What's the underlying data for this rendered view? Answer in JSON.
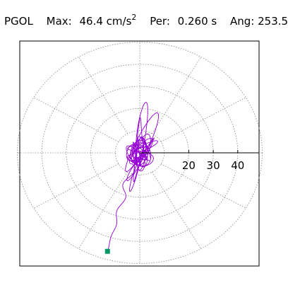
{
  "header": {
    "station": "PGOL",
    "max_label": "Max:",
    "max_value": "46.4",
    "max_unit": "cm/s",
    "max_unit_exp": "2",
    "per_label": "Per:",
    "per_value": "0.260 s",
    "ang_label": "Ang:",
    "ang_value": "253.5"
  },
  "chart_data": {
    "type": "scatter",
    "title": "",
    "radial_ticks": [
      "20",
      "30",
      "40"
    ],
    "rings": [
      10,
      20,
      30,
      40,
      50
    ],
    "spokes_deg": [
      0,
      30,
      60,
      90,
      120,
      150,
      180,
      210,
      240,
      270,
      300,
      330
    ],
    "max_amplitude": 46.4,
    "max_angle_deg": 253.5,
    "grid": true,
    "trace_color": "#9400d3",
    "marker_color": "#009966",
    "axis_color": "#000000",
    "grid_color": "#888888"
  }
}
